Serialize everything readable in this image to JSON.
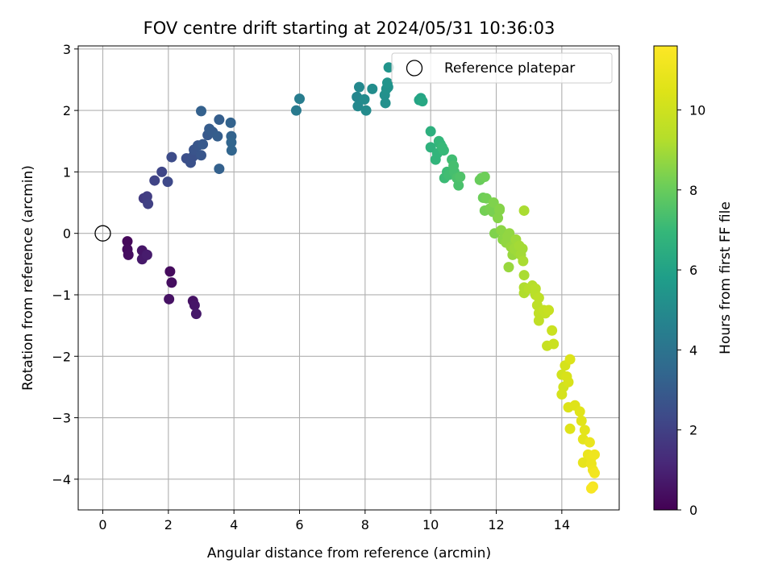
{
  "chart_data": {
    "type": "scatter",
    "title": "FOV centre drift starting at 2024/05/31 10:36:03",
    "xlabel": "Angular distance from reference (arcmin)",
    "ylabel": "Rotation from reference (arcmin)",
    "xlim": [
      -0.75,
      15.75
    ],
    "ylim": [
      -4.5,
      3.05
    ],
    "xticks": [
      0,
      2,
      4,
      6,
      8,
      10,
      12,
      14
    ],
    "yticks": [
      -4,
      -3,
      -2,
      -1,
      0,
      1,
      2,
      3
    ],
    "grid": true,
    "legend": {
      "position": "top-right",
      "entries": [
        "Reference platepar"
      ]
    },
    "reference_point": {
      "x": 0,
      "y": 0
    },
    "colorbar": {
      "label": "Hours from first FF file",
      "colormap": "viridis",
      "range": [
        0,
        11.6
      ],
      "ticks": [
        0,
        2,
        4,
        6,
        8,
        10
      ]
    },
    "points": [
      [
        0.75,
        -0.13,
        0.2
      ],
      [
        0.75,
        -0.26,
        0.3
      ],
      [
        0.78,
        -0.35,
        0.4
      ],
      [
        1.2,
        -0.28,
        0.6
      ],
      [
        1.2,
        -0.42,
        0.7
      ],
      [
        1.35,
        -0.35,
        0.8
      ],
      [
        2.05,
        -0.62,
        0.3
      ],
      [
        2.1,
        -0.8,
        0.4
      ],
      [
        2.02,
        -1.07,
        0.5
      ],
      [
        2.75,
        -1.1,
        0.5
      ],
      [
        2.8,
        -1.17,
        0.6
      ],
      [
        2.85,
        -1.31,
        0.7
      ],
      [
        1.25,
        0.57,
        1.8
      ],
      [
        1.35,
        0.6,
        1.9
      ],
      [
        1.38,
        0.48,
        2.0
      ],
      [
        1.58,
        0.86,
        2.1
      ],
      [
        1.8,
        1.0,
        2.2
      ],
      [
        1.98,
        0.84,
        2.3
      ],
      [
        2.1,
        1.24,
        2.4
      ],
      [
        2.55,
        1.22,
        2.5
      ],
      [
        2.68,
        1.15,
        2.6
      ],
      [
        2.75,
        1.25,
        2.6
      ],
      [
        2.78,
        1.36,
        2.7
      ],
      [
        2.9,
        1.43,
        2.8
      ],
      [
        3.0,
        1.27,
        2.8
      ],
      [
        3.05,
        1.45,
        2.9
      ],
      [
        3.2,
        1.6,
        2.9
      ],
      [
        3.25,
        1.7,
        3.0
      ],
      [
        3.35,
        1.65,
        3.0
      ],
      [
        3.5,
        1.58,
        3.1
      ],
      [
        3.55,
        1.85,
        3.1
      ],
      [
        3.55,
        1.05,
        3.2
      ],
      [
        3.0,
        1.99,
        3.2
      ],
      [
        3.9,
        1.8,
        3.3
      ],
      [
        3.92,
        1.58,
        3.3
      ],
      [
        3.92,
        1.48,
        3.4
      ],
      [
        3.93,
        1.35,
        3.4
      ],
      [
        5.9,
        2.0,
        4.3
      ],
      [
        6.0,
        2.19,
        4.4
      ],
      [
        7.75,
        2.22,
        4.8
      ],
      [
        7.78,
        2.07,
        4.9
      ],
      [
        7.82,
        2.38,
        4.9
      ],
      [
        7.98,
        2.18,
        5.0
      ],
      [
        8.03,
        2.0,
        5.0
      ],
      [
        8.22,
        2.35,
        5.1
      ],
      [
        8.6,
        2.25,
        5.2
      ],
      [
        8.62,
        2.12,
        5.2
      ],
      [
        8.65,
        2.35,
        5.3
      ],
      [
        8.7,
        2.38,
        5.3
      ],
      [
        8.68,
        2.45,
        5.4
      ],
      [
        8.72,
        2.7,
        5.4
      ],
      [
        9.65,
        2.17,
        6.1
      ],
      [
        9.7,
        2.2,
        6.1
      ],
      [
        9.75,
        2.15,
        6.2
      ],
      [
        10.0,
        1.66,
        6.6
      ],
      [
        10.0,
        1.4,
        6.7
      ],
      [
        10.15,
        1.2,
        6.8
      ],
      [
        10.2,
        1.3,
        6.8
      ],
      [
        10.25,
        1.5,
        6.9
      ],
      [
        10.3,
        1.45,
        6.9
      ],
      [
        10.35,
        1.4,
        7.0
      ],
      [
        10.4,
        1.35,
        7.0
      ],
      [
        10.42,
        0.9,
        7.1
      ],
      [
        10.5,
        1.0,
        7.1
      ],
      [
        10.55,
        0.95,
        7.2
      ],
      [
        10.65,
        1.2,
        7.2
      ],
      [
        10.7,
        1.1,
        7.3
      ],
      [
        10.72,
        1.0,
        7.3
      ],
      [
        10.8,
        0.9,
        7.4
      ],
      [
        10.85,
        0.78,
        7.4
      ],
      [
        10.9,
        0.92,
        7.5
      ],
      [
        11.5,
        0.87,
        8.0
      ],
      [
        11.55,
        0.9,
        8.0
      ],
      [
        11.65,
        0.92,
        8.1
      ],
      [
        11.6,
        0.58,
        8.1
      ],
      [
        11.65,
        0.37,
        8.2
      ],
      [
        11.7,
        0.57,
        8.2
      ],
      [
        11.8,
        0.4,
        8.3
      ],
      [
        11.9,
        0.35,
        8.3
      ],
      [
        11.92,
        0.5,
        8.4
      ],
      [
        11.95,
        0.0,
        8.4
      ],
      [
        12.05,
        0.25,
        8.5
      ],
      [
        12.1,
        0.4,
        8.5
      ],
      [
        12.1,
        0.38,
        8.5
      ],
      [
        12.15,
        0.05,
        8.6
      ],
      [
        12.2,
        -0.1,
        8.6
      ],
      [
        12.3,
        -0.15,
        8.7
      ],
      [
        12.35,
        -0.05,
        8.7
      ],
      [
        12.4,
        0.0,
        8.7
      ],
      [
        12.38,
        -0.55,
        8.8
      ],
      [
        12.45,
        -0.22,
        8.8
      ],
      [
        12.5,
        -0.35,
        8.8
      ],
      [
        12.55,
        -0.25,
        8.9
      ],
      [
        12.6,
        -0.1,
        8.9
      ],
      [
        12.65,
        -0.3,
        8.9
      ],
      [
        12.7,
        -0.2,
        9.0
      ],
      [
        12.75,
        -0.35,
        9.0
      ],
      [
        12.8,
        -0.25,
        9.0
      ],
      [
        12.82,
        -0.45,
        9.1
      ],
      [
        12.85,
        -0.68,
        9.1
      ],
      [
        12.85,
        0.37,
        9.1
      ],
      [
        12.85,
        -0.88,
        9.2
      ],
      [
        12.85,
        -0.97,
        9.2
      ],
      [
        13.0,
        -0.9,
        9.3
      ],
      [
        13.1,
        -0.85,
        9.3
      ],
      [
        13.2,
        -0.9,
        9.4
      ],
      [
        13.2,
        -1.0,
        9.4
      ],
      [
        13.3,
        -1.05,
        9.5
      ],
      [
        13.25,
        -1.17,
        9.5
      ],
      [
        13.3,
        -1.3,
        9.6
      ],
      [
        13.3,
        -1.42,
        9.6
      ],
      [
        13.45,
        -1.25,
        9.7
      ],
      [
        13.5,
        -1.3,
        9.7
      ],
      [
        13.6,
        -1.25,
        9.8
      ],
      [
        13.55,
        -1.83,
        9.8
      ],
      [
        13.7,
        -1.58,
        9.9
      ],
      [
        13.75,
        -1.8,
        9.9
      ],
      [
        14.0,
        -2.3,
        10.1
      ],
      [
        14.05,
        -2.5,
        10.1
      ],
      [
        14.0,
        -2.62,
        10.2
      ],
      [
        14.1,
        -2.15,
        10.2
      ],
      [
        14.15,
        -2.33,
        10.3
      ],
      [
        14.2,
        -2.42,
        10.3
      ],
      [
        14.25,
        -2.05,
        10.4
      ],
      [
        14.2,
        -2.83,
        10.4
      ],
      [
        14.25,
        -3.18,
        10.5
      ],
      [
        14.4,
        -2.8,
        10.5
      ],
      [
        14.55,
        -2.9,
        10.6
      ],
      [
        14.6,
        -3.05,
        10.6
      ],
      [
        14.65,
        -3.35,
        10.7
      ],
      [
        14.7,
        -3.2,
        10.7
      ],
      [
        14.65,
        -3.73,
        10.8
      ],
      [
        14.8,
        -3.6,
        10.9
      ],
      [
        14.85,
        -3.4,
        10.9
      ],
      [
        14.9,
        -3.65,
        11.0
      ],
      [
        14.9,
        -3.75,
        11.0
      ],
      [
        14.95,
        -3.85,
        11.1
      ],
      [
        15.0,
        -3.6,
        11.1
      ],
      [
        15.0,
        -3.9,
        11.2
      ],
      [
        14.95,
        -4.12,
        11.3
      ],
      [
        14.9,
        -4.15,
        11.4
      ]
    ]
  }
}
